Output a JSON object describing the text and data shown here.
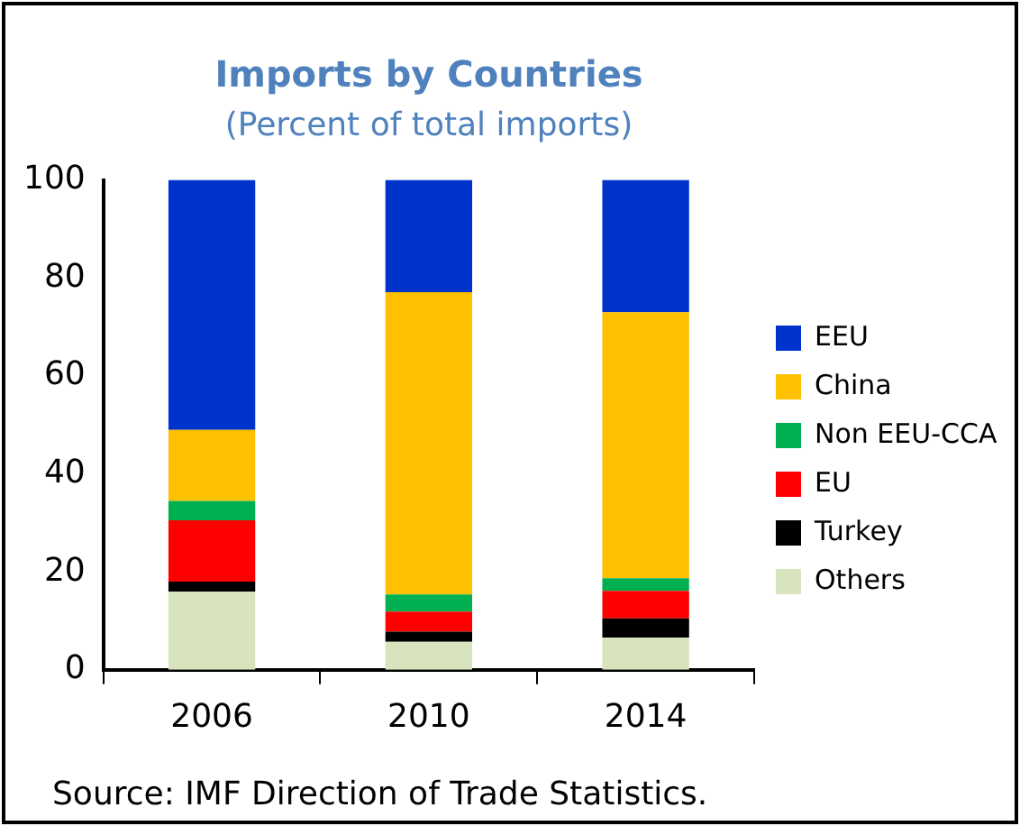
{
  "chart_data": {
    "type": "bar",
    "title": "Imports by Countries",
    "subtitle": "(Percent of total imports)",
    "categories": [
      "2006",
      "2010",
      "2014"
    ],
    "stacked": true,
    "ylim": [
      0,
      100
    ],
    "yticks": [
      0,
      20,
      40,
      60,
      80,
      100
    ],
    "grid": false,
    "legend": "right",
    "annotations": [
      "Source: IMF Direction of Trade Statistics."
    ],
    "series": [
      {
        "name": "Others",
        "color": "#d7e4bd",
        "values": [
          16,
          5.7,
          6.6
        ]
      },
      {
        "name": "Turkey",
        "color": "#000000",
        "values": [
          2,
          2.1,
          3.9
        ]
      },
      {
        "name": "EU",
        "color": "#ff0000",
        "values": [
          12.5,
          4.1,
          5.6
        ]
      },
      {
        "name": "Non EEU-CCA",
        "color": "#00b050",
        "values": [
          4,
          3.5,
          2.6
        ]
      },
      {
        "name": "China",
        "color": "#ffc000",
        "values": [
          14.5,
          61.7,
          54.3
        ]
      },
      {
        "name": "EEU",
        "color": "#0033cc",
        "values": [
          51,
          22.9,
          27
        ]
      }
    ]
  }
}
